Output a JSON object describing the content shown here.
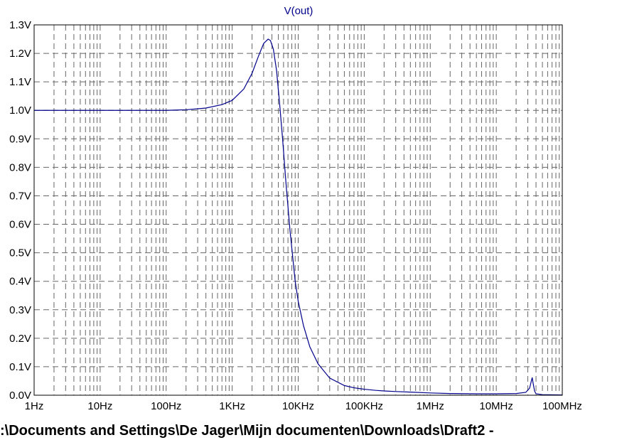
{
  "chart_data": {
    "type": "line",
    "series_label": "V(out)",
    "x_scale": "log",
    "xlim": [
      1,
      100000000
    ],
    "ylim": [
      0.0,
      1.3
    ],
    "grid": true,
    "x_tick_labels": [
      "1Hz",
      "10Hz",
      "100Hz",
      "1KHz",
      "10KHz",
      "100KHz",
      "1MHz",
      "10MHz",
      "100MHz"
    ],
    "y_tick_labels": [
      "0.0V",
      "0.1V",
      "0.2V",
      "0.3V",
      "0.4V",
      "0.5V",
      "0.6V",
      "0.7V",
      "0.8V",
      "0.9V",
      "1.0V",
      "1.1V",
      "1.2V",
      "1.3V"
    ],
    "series": [
      {
        "color": "#00008b",
        "x": [
          1,
          10,
          100,
          200,
          400,
          700,
          1000,
          1500,
          2000,
          2500,
          3000,
          3500,
          3800,
          4200,
          4700,
          5200,
          5800,
          6500,
          7500,
          9000,
          10000,
          12000,
          15000,
          20000,
          30000,
          50000,
          70000,
          100000,
          150000,
          200000,
          300000,
          500000,
          1000000,
          2000000,
          5000000,
          10000000,
          20000000,
          28000000,
          32000000,
          34000000,
          35000000,
          36000000,
          38000000,
          40000000,
          50000000,
          100000000
        ],
        "y": [
          1.0,
          1.0,
          1.0,
          1.002,
          1.008,
          1.02,
          1.035,
          1.075,
          1.13,
          1.19,
          1.235,
          1.25,
          1.245,
          1.215,
          1.14,
          1.03,
          0.9,
          0.75,
          0.58,
          0.4,
          0.33,
          0.245,
          0.17,
          0.11,
          0.06,
          0.034,
          0.026,
          0.021,
          0.017,
          0.015,
          0.013,
          0.011,
          0.008,
          0.006,
          0.005,
          0.005,
          0.006,
          0.01,
          0.025,
          0.05,
          0.062,
          0.045,
          0.015,
          0.005,
          0.002,
          0.001
        ]
      }
    ]
  },
  "footer": {
    "path_text": ":\\Documents and Settings\\De Jager\\Mijn documenten\\Downloads\\Draft2  -"
  },
  "colors": {
    "trace": "#00008b",
    "grid": "#666666",
    "frame": "#000000",
    "background": "#ffffff"
  }
}
